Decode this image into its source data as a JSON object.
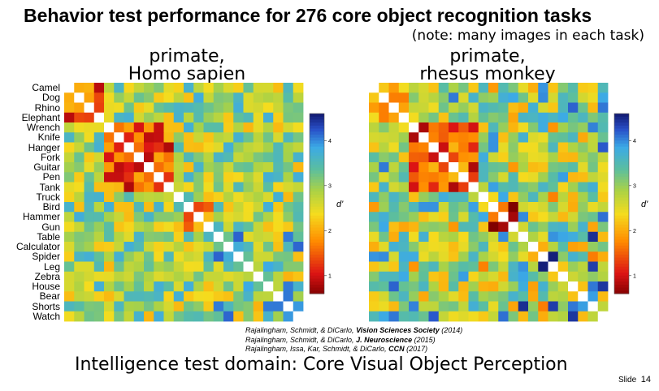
{
  "header": {
    "title": "Behavior test performance for 276 core object recognition tasks",
    "note": "(note: many images in each task)"
  },
  "chart_data": [
    {
      "type": "heatmap",
      "title_line1": "primate,",
      "title_line2": "Homo sapien",
      "categories": [
        "Camel",
        "Dog",
        "Rhino",
        "Elephant",
        "Wrench",
        "Knife",
        "Hanger",
        "Fork",
        "Guitar",
        "Pen",
        "Tank",
        "Truck",
        "Bird",
        "Hammer",
        "Gun",
        "Table",
        "Calculator",
        "Spider",
        "Leg",
        "Zebra",
        "House",
        "Bear",
        "Shorts",
        "Watch"
      ],
      "colorbar": {
        "label": "d'",
        "ticks": [
          1,
          2,
          3,
          4
        ],
        "range": [
          0.6,
          4.6
        ]
      }
    },
    {
      "type": "heatmap",
      "title_line1": "primate,",
      "title_line2": "rhesus monkey",
      "categories": [
        "Camel",
        "Dog",
        "Rhino",
        "Elephant",
        "Wrench",
        "Knife",
        "Hanger",
        "Fork",
        "Guitar",
        "Pen",
        "Tank",
        "Truck",
        "Bird",
        "Hammer",
        "Gun",
        "Table",
        "Calculator",
        "Spider",
        "Leg",
        "Zebra",
        "House",
        "Bear",
        "Shorts",
        "Watch"
      ],
      "colorbar": {
        "label": "d'",
        "ticks": [
          1,
          2,
          3,
          4
        ],
        "range": [
          0.6,
          4.6
        ]
      }
    }
  ],
  "references": [
    {
      "authors": "Rajalingham, Schmidt, & DiCarlo, ",
      "venue": "Vision Sciences Society",
      "year": " (2014)"
    },
    {
      "authors": "Rajalingham, Schmidt, & DiCarlo, ",
      "venue": "J. Neuroscience",
      "year": " (2015)"
    },
    {
      "authors": "Rajalingham, Issa, Kar, Schmidt, & DiCarlo, ",
      "venue": "CCN",
      "year": " (2017)"
    }
  ],
  "footer": {
    "subtitle": "Intelligence test domain: Core Visual Object Perception",
    "slide_label": "Slide",
    "slide_number": "14"
  }
}
